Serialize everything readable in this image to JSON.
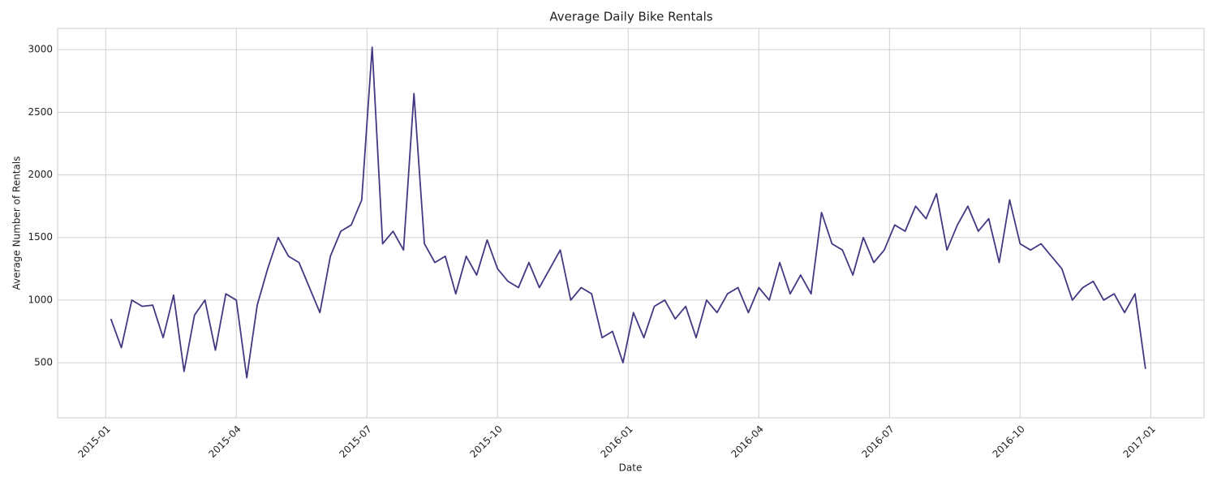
{
  "chart_data": {
    "type": "line",
    "title": "Average Daily Bike Rentals",
    "x_label": "Date",
    "y_label": "Average Number of Rentals",
    "color": "#453781",
    "grid": true,
    "x": [
      2015.01,
      2015.03,
      2015.05,
      2015.07,
      2015.09,
      2015.11,
      2015.13,
      2015.15,
      2015.17,
      2015.19,
      2015.21,
      2015.23,
      2015.25,
      2015.27,
      2015.29,
      2015.31,
      2015.33,
      2015.35,
      2015.37,
      2015.39,
      2015.41,
      2015.43,
      2015.45,
      2015.47,
      2015.49,
      2015.51,
      2015.53,
      2015.55,
      2015.57,
      2015.59,
      2015.61,
      2015.63,
      2015.65,
      2015.67,
      2015.69,
      2015.71,
      2015.73,
      2015.75,
      2015.77,
      2015.79,
      2015.81,
      2015.83,
      2015.85,
      2015.87,
      2015.89,
      2015.91,
      2015.93,
      2015.95,
      2015.97,
      2015.99,
      2016.01,
      2016.03,
      2016.05,
      2016.07,
      2016.09,
      2016.11,
      2016.13,
      2016.15,
      2016.17,
      2016.19,
      2016.21,
      2016.23,
      2016.25,
      2016.27,
      2016.29,
      2016.31,
      2016.33,
      2016.35,
      2016.37,
      2016.39,
      2016.41,
      2016.43,
      2016.45,
      2016.47,
      2016.49,
      2016.51,
      2016.53,
      2016.55,
      2016.57,
      2016.59,
      2016.61,
      2016.63,
      2016.65,
      2016.67,
      2016.69,
      2016.71,
      2016.73,
      2016.75,
      2016.77,
      2016.79,
      2016.81,
      2016.83,
      2016.85,
      2016.87,
      2016.89,
      2016.91,
      2016.93,
      2016.95,
      2016.97,
      2016.99
    ],
    "values": [
      850,
      620,
      1000,
      950,
      960,
      700,
      1040,
      430,
      880,
      1000,
      600,
      1050,
      1000,
      380,
      960,
      1250,
      1500,
      1350,
      1300,
      1100,
      900,
      1350,
      1550,
      1600,
      1800,
      3020,
      1450,
      1550,
      1400,
      2650,
      1450,
      1300,
      1350,
      1050,
      1350,
      1200,
      1480,
      1250,
      1150,
      1100,
      1300,
      1100,
      1250,
      1400,
      1000,
      1100,
      1050,
      700,
      750,
      500,
      900,
      700,
      950,
      1000,
      850,
      950,
      700,
      1000,
      900,
      1050,
      1100,
      900,
      1100,
      1000,
      1300,
      1050,
      1200,
      1050,
      1700,
      1450,
      1400,
      1200,
      1500,
      1300,
      1400,
      1600,
      1550,
      1750,
      1650,
      1850,
      1400,
      1600,
      1750,
      1550,
      1650,
      1300,
      1800,
      1450,
      1400,
      1450,
      1350,
      1250,
      1000,
      1100,
      1150,
      1000,
      1050,
      900,
      1050,
      450
    ],
    "xlim": [
      2014.908,
      2017.102
    ],
    "ylim": [
      60,
      3170
    ],
    "xticks": [
      {
        "value": 2015,
        "label": "2015-01"
      },
      {
        "value": 2015.25,
        "label": "2015-04"
      },
      {
        "value": 2015.5,
        "label": "2015-07"
      },
      {
        "value": 2015.75,
        "label": "2015-10"
      },
      {
        "value": 2016,
        "label": "2016-01"
      },
      {
        "value": 2016.25,
        "label": "2016-04"
      },
      {
        "value": 2016.5,
        "label": "2016-07"
      },
      {
        "value": 2016.75,
        "label": "2016-10"
      },
      {
        "value": 2017,
        "label": "2017-01"
      }
    ],
    "yticks": [
      500,
      1000,
      1500,
      2000,
      2500,
      3000
    ]
  }
}
